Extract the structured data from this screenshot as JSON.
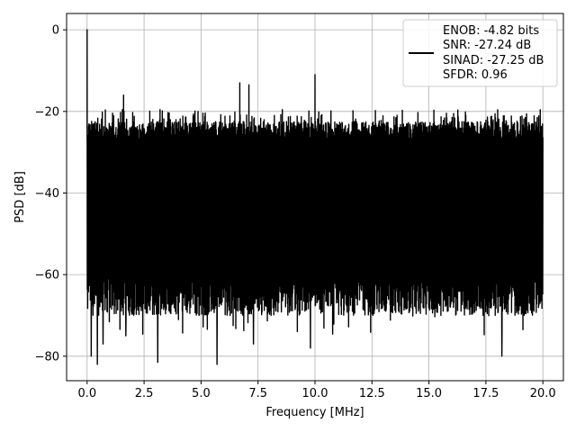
{
  "chart_data": {
    "type": "line",
    "xlabel": "Frequency [MHz]",
    "ylabel": "PSD [dB]",
    "xlim": [
      -0.9,
      20.9
    ],
    "ylim": [
      -86,
      4
    ],
    "xticks": [
      0.0,
      2.5,
      5.0,
      7.5,
      10.0,
      12.5,
      15.0,
      17.5,
      20.0
    ],
    "xtick_labels": [
      "0.0",
      "2.5",
      "5.0",
      "7.5",
      "10.0",
      "12.5",
      "15.0",
      "17.5",
      "20.0"
    ],
    "yticks": [
      0,
      -20,
      -40,
      -60,
      -80
    ],
    "ytick_labels": [
      "0",
      "−20",
      "−40",
      "−60",
      "−80"
    ],
    "grid": true,
    "legend_position": "top-right",
    "series": [
      {
        "name": "ENOB: -4.82 bits",
        "color": "#000000",
        "x_range": [
          0.0,
          20.0
        ],
        "noise_band": {
          "upper_top": -19.5,
          "upper_typical": -22.5,
          "lower_typical": -65,
          "lower_min": -82
        },
        "peaks": [
          {
            "x": 0.0,
            "y": 0.0
          },
          {
            "x": 1.6,
            "y": -16
          },
          {
            "x": 6.7,
            "y": -13
          },
          {
            "x": 7.1,
            "y": -13.5
          },
          {
            "x": 10.0,
            "y": -11
          }
        ],
        "dips": [
          {
            "x": 0.18,
            "y": -80
          },
          {
            "x": 0.45,
            "y": -82
          },
          {
            "x": 0.7,
            "y": -77
          },
          {
            "x": 1.7,
            "y": -75
          },
          {
            "x": 3.1,
            "y": -81.5
          },
          {
            "x": 5.7,
            "y": -82
          },
          {
            "x": 7.3,
            "y": -77
          },
          {
            "x": 9.8,
            "y": -78
          },
          {
            "x": 18.2,
            "y": -80
          }
        ]
      }
    ],
    "legend_lines": [
      "ENOB: -4.82 bits",
      "SNR: -27.24 dB",
      "SINAD: -27.25 dB",
      "SFDR: 0.96"
    ]
  }
}
